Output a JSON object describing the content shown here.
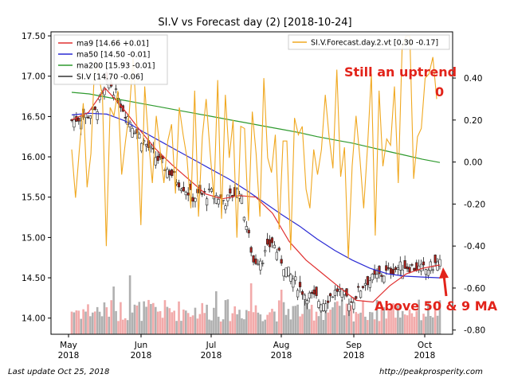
{
  "chart_data": {
    "type": "candlestick",
    "title": "SI.V vs Forecast day (2)  [2018-10-24]",
    "left_axis": {
      "ylim": [
        13.8,
        17.55
      ],
      "ticks": [
        "14.00",
        "14.50",
        "15.00",
        "15.50",
        "16.00",
        "16.50",
        "17.00",
        "17.50"
      ]
    },
    "right_axis": {
      "ylim": [
        -0.82,
        0.62
      ],
      "ticks": [
        "0.40",
        "0.20",
        "0.00",
        "-0.20",
        "-0.40",
        "-0.60",
        "-0.80"
      ]
    },
    "x_ticks": [
      {
        "label": "May",
        "sub": "2018"
      },
      {
        "label": "Jun",
        "sub": "2018"
      },
      {
        "label": "Jul",
        "sub": "2018"
      },
      {
        "label": "Aug",
        "sub": "2018"
      },
      {
        "label": "Sep",
        "sub": "2018"
      },
      {
        "label": "Oct",
        "sub": "2018"
      }
    ],
    "legend_left": [
      {
        "label": "ma9 [14.66 +0.01]",
        "color": "#e03030"
      },
      {
        "label": "ma50 [14.50 -0.01]",
        "color": "#2a2ad4"
      },
      {
        "label": "ma200 [15.93 -0.01]",
        "color": "#2e9a2e"
      },
      {
        "label": "SI.V [14.70 -0.06]",
        "color": "#333333"
      }
    ],
    "legend_right": [
      {
        "label": "SI.V.Forecast.day.2.vt [0.30 -0.17]",
        "color": "#f0a820"
      }
    ],
    "ma200": [
      16.8,
      16.78,
      16.74,
      16.7,
      16.66,
      16.62,
      16.58,
      16.54,
      16.5,
      16.46,
      16.42,
      16.38,
      16.34,
      16.3,
      16.25,
      16.21,
      16.17,
      16.12,
      16.07,
      16.02,
      15.97,
      15.93
    ],
    "ma50": [
      16.52,
      16.54,
      16.53,
      16.45,
      16.32,
      16.2,
      16.08,
      15.96,
      15.84,
      15.72,
      15.58,
      15.43,
      15.28,
      15.14,
      14.98,
      14.84,
      14.72,
      14.62,
      14.55,
      14.52,
      14.51,
      14.5
    ],
    "ma9": [
      16.46,
      16.55,
      16.85,
      16.62,
      16.35,
      16.1,
      15.9,
      15.72,
      15.54,
      15.48,
      15.52,
      15.5,
      15.3,
      14.95,
      14.72,
      14.55,
      14.38,
      14.22,
      14.2,
      14.4,
      14.55,
      14.62,
      14.66
    ],
    "forecast": [
      0.06,
      -0.17,
      0.06,
      0.28,
      -0.12,
      0.04,
      0.48,
      0.42,
      0.31,
      -0.4,
      0.26,
      0.22,
      0.34,
      -0.06,
      0.1,
      0.24,
      0.5,
      0.16,
      -0.3,
      0.36,
      0.1,
      -0.1,
      0.22,
      0.06,
      -0.1,
      0.1,
      0.18,
      -0.15,
      0.26,
      0.13,
      0.02,
      -0.22,
      0.34,
      -0.26,
      0.12,
      0.3,
      0.05,
      -0.17,
      0.39,
      -0.27,
      0.32,
      0.02,
      0.2,
      -0.36,
      0.17,
      0.16,
      -0.28,
      0.24,
      0.04,
      -0.26,
      0.4,
      0.02,
      -0.05,
      0.13,
      -0.32,
      0.1,
      0.1,
      -0.42,
      0.21,
      0.13,
      0.17,
      -0.13,
      -0.22,
      0.06,
      -0.06,
      0.06,
      0.32,
      0.12,
      -0.03,
      0.44,
      -0.07,
      0.07,
      -0.46,
      -0.02,
      0.22,
      0.02,
      -0.22,
      0.07,
      0.42,
      -0.35,
      0.34,
      -0.02,
      0.11,
      0.08,
      0.36,
      -0.1,
      0.54,
      0.6,
      0.6,
      -0.08,
      0.12,
      0.16,
      0.4,
      0.42,
      0.5,
      0.3
    ]
  },
  "annotations": {
    "top_text": "Still an uptrend",
    "top_sub": "0",
    "bottom_text": "Above 50 & 9 MA"
  },
  "footer": {
    "left": "Last update Oct 25, 2018",
    "right": "http://peakprosperity.com"
  }
}
